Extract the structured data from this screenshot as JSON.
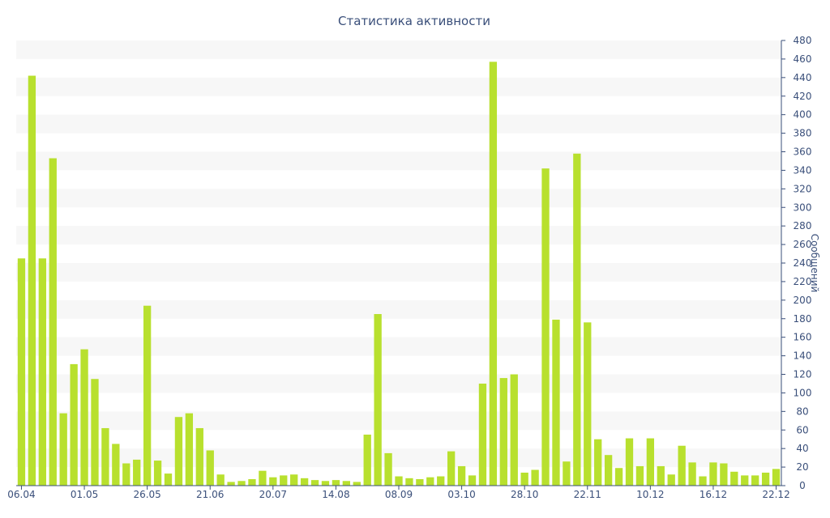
{
  "chart_data": {
    "type": "bar",
    "title": "Статистика активности",
    "ylabel": "Сообщений",
    "xlabel": "",
    "ylim": [
      0,
      480
    ],
    "y_ticks": [
      0,
      20,
      40,
      60,
      80,
      100,
      120,
      140,
      160,
      180,
      200,
      220,
      240,
      260,
      280,
      300,
      320,
      340,
      360,
      380,
      400,
      420,
      440,
      460,
      480
    ],
    "y_axis_position": "right",
    "grid": "alternating horizontal bands",
    "legend": "none",
    "bar_color": "#b8e02e",
    "band_color": "#f7f7f7",
    "axis_color": "#3a4f7a",
    "x_tick_labels": [
      {
        "label": "06.04",
        "index": 0
      },
      {
        "label": "01.05",
        "index": 6
      },
      {
        "label": "26.05",
        "index": 12
      },
      {
        "label": "21.06",
        "index": 18
      },
      {
        "label": "20.07",
        "index": 24
      },
      {
        "label": "14.08",
        "index": 30
      },
      {
        "label": "08.09",
        "index": 36
      },
      {
        "label": "03.10",
        "index": 42
      },
      {
        "label": "28.10",
        "index": 48
      },
      {
        "label": "22.11",
        "index": 54
      },
      {
        "label": "10.12",
        "index": 60
      },
      {
        "label": "16.12",
        "index": 66
      },
      {
        "label": "22.12",
        "index": 72
      }
    ],
    "values": [
      245,
      442,
      245,
      353,
      78,
      131,
      147,
      115,
      62,
      45,
      24,
      28,
      194,
      27,
      13,
      74,
      78,
      62,
      38,
      12,
      4,
      5,
      7,
      16,
      9,
      11,
      12,
      8,
      6,
      5,
      6,
      5,
      4,
      55,
      185,
      35,
      10,
      8,
      7,
      9,
      10,
      37,
      21,
      11,
      110,
      457,
      116,
      120,
      14,
      17,
      342,
      179,
      26,
      358,
      176,
      50,
      33,
      19,
      51,
      21,
      51,
      21,
      12,
      43,
      25,
      10,
      25,
      24,
      15,
      11,
      11,
      14,
      18
    ]
  }
}
